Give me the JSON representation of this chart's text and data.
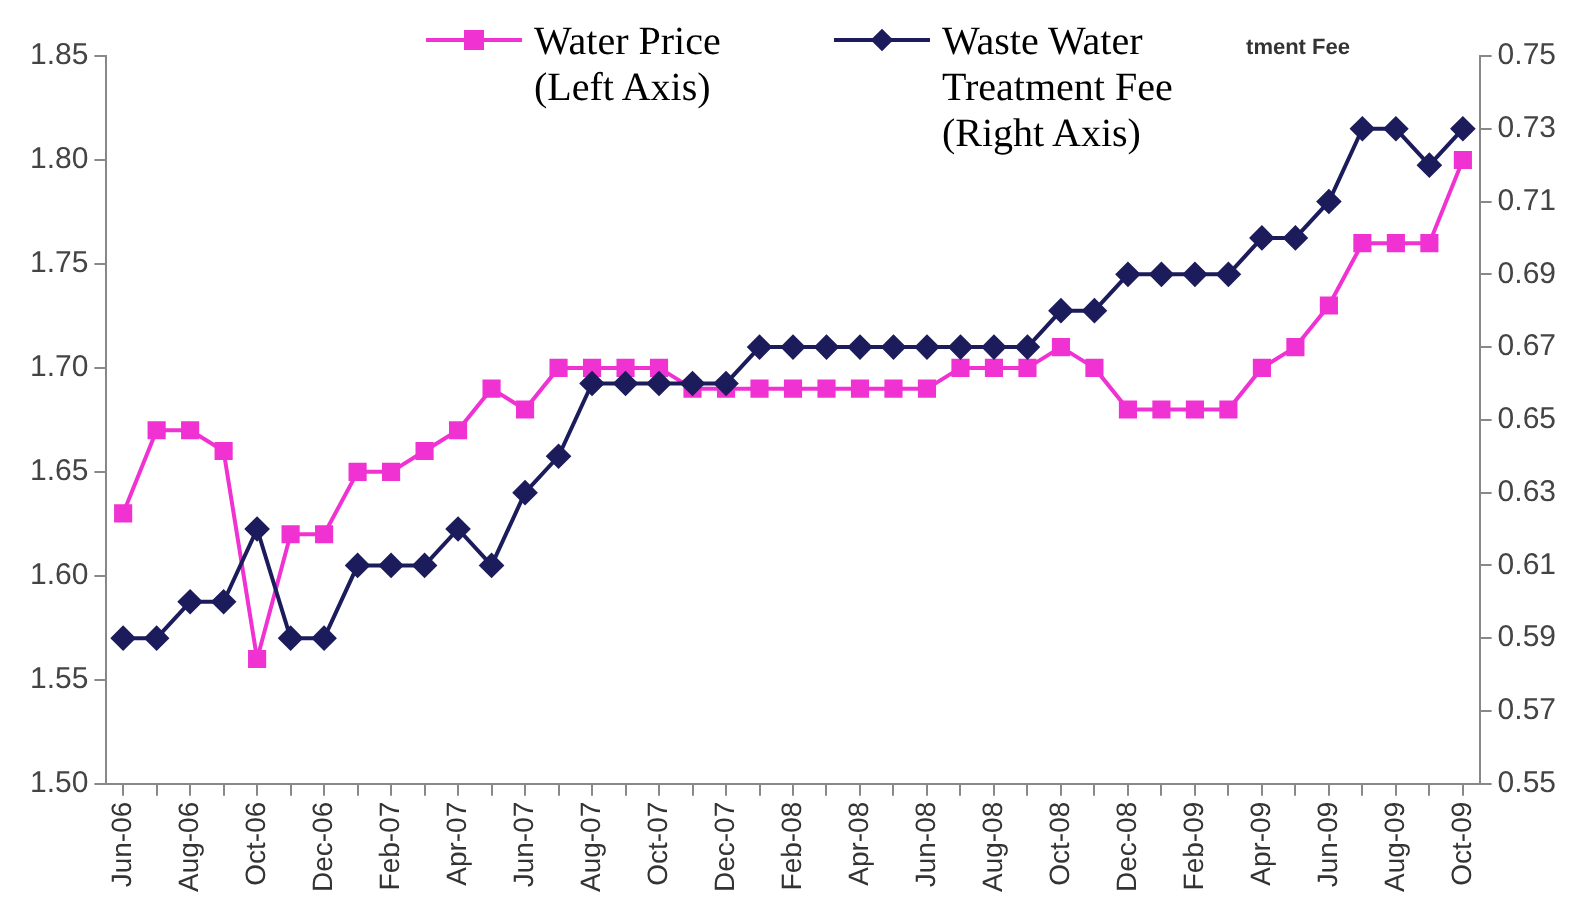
{
  "chart_data": {
    "type": "line",
    "categories": [
      "Jun-06",
      null,
      "Aug-06",
      null,
      "Oct-06",
      null,
      "Dec-06",
      null,
      "Feb-07",
      null,
      "Apr-07",
      null,
      "Jun-07",
      null,
      "Aug-07",
      null,
      "Oct-07",
      null,
      "Dec-07",
      null,
      "Feb-08",
      null,
      "Apr-08",
      null,
      "Jun-08",
      null,
      "Aug-08",
      null,
      "Oct-08",
      null,
      "Dec-08",
      null,
      "Feb-09",
      null,
      "Apr-09",
      null,
      "Jun-09",
      null,
      "Aug-09",
      null,
      "Oct-09"
    ],
    "series": [
      {
        "name": "Water Price (Left Axis)",
        "color": "#f032d2",
        "marker": "square",
        "values": [
          1.63,
          1.67,
          1.67,
          1.66,
          1.56,
          1.62,
          1.62,
          1.65,
          1.65,
          1.66,
          1.67,
          1.69,
          1.68,
          1.7,
          1.7,
          1.7,
          1.7,
          1.69,
          1.69,
          1.69,
          1.69,
          1.69,
          1.69,
          1.69,
          1.69,
          1.7,
          1.7,
          1.7,
          1.71,
          1.7,
          1.68,
          1.68,
          1.68,
          1.68,
          1.7,
          1.71,
          1.73,
          1.76,
          1.76,
          1.76,
          1.8
        ]
      },
      {
        "name": "Waste Water Treatment Fee (Right Axis)",
        "color": "#1c1c5c",
        "marker": "diamond",
        "axis": "y2",
        "values": [
          0.59,
          0.59,
          0.6,
          0.6,
          0.62,
          0.59,
          0.59,
          0.61,
          0.61,
          0.61,
          0.62,
          0.61,
          0.63,
          0.64,
          0.66,
          0.66,
          0.66,
          0.66,
          0.66,
          0.67,
          0.67,
          0.67,
          0.67,
          0.67,
          0.67,
          0.67,
          0.67,
          0.67,
          0.68,
          0.68,
          0.69,
          0.69,
          0.69,
          0.69,
          0.7,
          0.7,
          0.71,
          0.73,
          0.73,
          0.72,
          0.73
        ]
      }
    ],
    "ylim": [
      1.5,
      1.85
    ],
    "yticks": [
      {
        "value": 1.5,
        "label": "1.50"
      },
      1.55,
      {
        "value": 1.6,
        "label": "1.60"
      },
      1.65,
      {
        "value": 1.7,
        "label": "1.70"
      },
      1.75,
      {
        "value": 1.8,
        "label": "1.80"
      },
      1.85
    ],
    "y2lim": [
      0.55,
      0.75
    ],
    "y2ticks": [
      0.55,
      0.57,
      0.59,
      0.61,
      0.63,
      0.65,
      0.67,
      0.69,
      0.71,
      0.73,
      0.75
    ],
    "grid": false,
    "legend": "top",
    "annotations": [
      "tment Fee"
    ]
  }
}
